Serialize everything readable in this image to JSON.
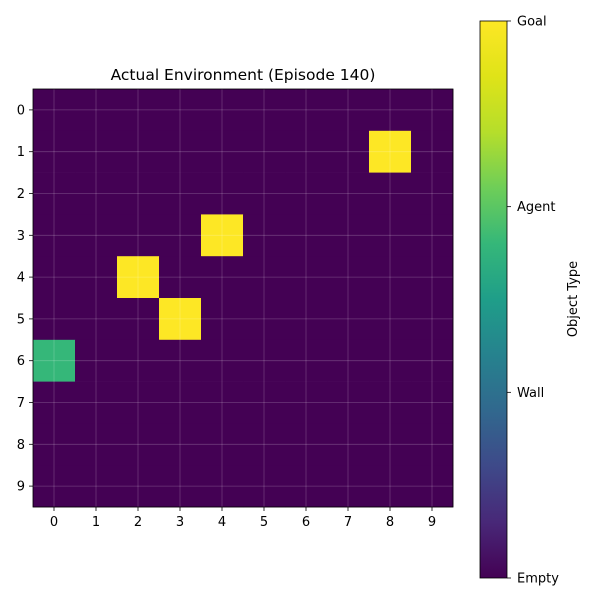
{
  "chart_data": {
    "type": "heatmap",
    "title": "Actual Environment (Episode 140)",
    "rows": 10,
    "cols": 10,
    "x_ticks": [
      "0",
      "1",
      "2",
      "3",
      "4",
      "5",
      "6",
      "7",
      "8",
      "9"
    ],
    "y_ticks": [
      "0",
      "1",
      "2",
      "3",
      "4",
      "5",
      "6",
      "7",
      "8",
      "9"
    ],
    "grid": true,
    "colormap": "viridis",
    "vmin": 0,
    "vmax": 3,
    "colorbar": {
      "label": "Object Type",
      "ticks": [
        {
          "value": 0,
          "label": "Empty"
        },
        {
          "value": 1,
          "label": "Wall"
        },
        {
          "value": 2,
          "label": "Agent"
        },
        {
          "value": 3,
          "label": "Goal"
        }
      ],
      "placement": "right"
    },
    "cells": [
      {
        "row": 1,
        "col": 8,
        "value": 3
      },
      {
        "row": 3,
        "col": 4,
        "value": 3
      },
      {
        "row": 4,
        "col": 2,
        "value": 3
      },
      {
        "row": 5,
        "col": 3,
        "value": 3
      },
      {
        "row": 6,
        "col": 0,
        "value": 2
      }
    ],
    "default_value": 0
  },
  "colors": {
    "Empty": "#440154",
    "Wall": "#31688e",
    "Agent": "#35b779",
    "Goal": "#fde725"
  }
}
